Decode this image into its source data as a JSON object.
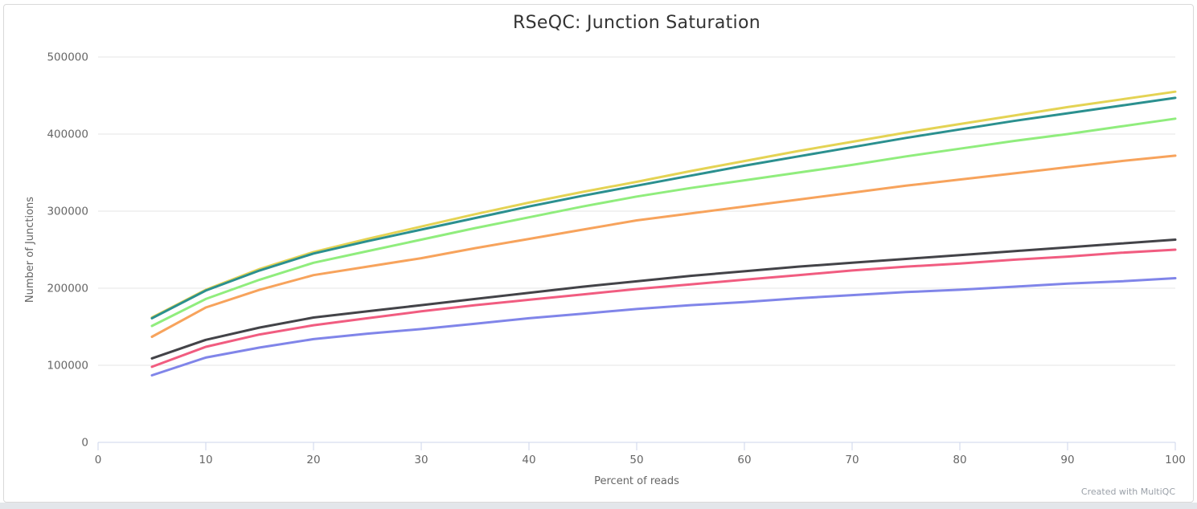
{
  "header": {
    "title": "RSeQC: Junction Saturation"
  },
  "watermark": "Created with MultiQC",
  "colors": {
    "grid": "#e6e6e6",
    "axis_line": "#ccd6eb",
    "tick_text": "#666666",
    "title_text": "#333333",
    "watermark_text": "#9aa0a8"
  },
  "chart_data": {
    "type": "line",
    "title": "RSeQC: Junction Saturation",
    "xlabel": "Percent of reads",
    "ylabel": "Number of Junctions",
    "xlim": [
      0,
      100
    ],
    "ylim": [
      0,
      500000
    ],
    "xticks": [
      0,
      10,
      20,
      30,
      40,
      50,
      60,
      70,
      80,
      90,
      100
    ],
    "yticks": [
      0,
      100000,
      200000,
      300000,
      400000,
      500000
    ],
    "grid": "horizontal-only",
    "legend_position": "none",
    "line_width": 3,
    "x": [
      5,
      10,
      15,
      20,
      25,
      30,
      35,
      40,
      45,
      50,
      55,
      60,
      65,
      70,
      75,
      80,
      85,
      90,
      95,
      100
    ],
    "series": [
      {
        "name": "series-yellow",
        "color": "#e4d354",
        "values": [
          162000,
          198000,
          225000,
          247000,
          264000,
          280000,
          296000,
          311000,
          325000,
          338000,
          352000,
          365000,
          378000,
          390000,
          402000,
          413000,
          424000,
          435000,
          445000,
          455000
        ]
      },
      {
        "name": "series-teal",
        "color": "#2b908f",
        "values": [
          161000,
          197000,
          223000,
          245000,
          261000,
          276000,
          291000,
          306000,
          320000,
          333000,
          346000,
          359000,
          371000,
          383000,
          395000,
          406000,
          417000,
          427000,
          437000,
          447000
        ]
      },
      {
        "name": "series-green",
        "color": "#90ed7d",
        "values": [
          151000,
          186000,
          211000,
          233000,
          248000,
          263000,
          278000,
          292000,
          306000,
          319000,
          330000,
          340000,
          350000,
          360000,
          371000,
          381000,
          391000,
          400000,
          410000,
          420000
        ]
      },
      {
        "name": "series-orange",
        "color": "#f7a35c",
        "values": [
          137000,
          175000,
          198000,
          217000,
          228000,
          239000,
          252000,
          264000,
          276000,
          288000,
          297000,
          306000,
          315000,
          324000,
          333000,
          341000,
          349000,
          357000,
          365000,
          372000
        ]
      },
      {
        "name": "series-black",
        "color": "#434348",
        "values": [
          109000,
          133000,
          149000,
          162000,
          170000,
          178000,
          186000,
          194000,
          202000,
          209000,
          216000,
          222000,
          228000,
          233000,
          238000,
          243000,
          248000,
          253000,
          258000,
          263000
        ]
      },
      {
        "name": "series-pink",
        "color": "#f15c80",
        "values": [
          98000,
          124000,
          140000,
          152000,
          161000,
          170000,
          178000,
          185000,
          192000,
          199000,
          205000,
          211000,
          217000,
          223000,
          228000,
          232000,
          237000,
          241000,
          246000,
          250000
        ]
      },
      {
        "name": "series-purple",
        "color": "#8085e9",
        "values": [
          87000,
          110000,
          123000,
          134000,
          141000,
          147000,
          154000,
          161000,
          167000,
          173000,
          178000,
          182000,
          187000,
          191000,
          195000,
          198000,
          202000,
          206000,
          209000,
          213000
        ]
      }
    ]
  }
}
